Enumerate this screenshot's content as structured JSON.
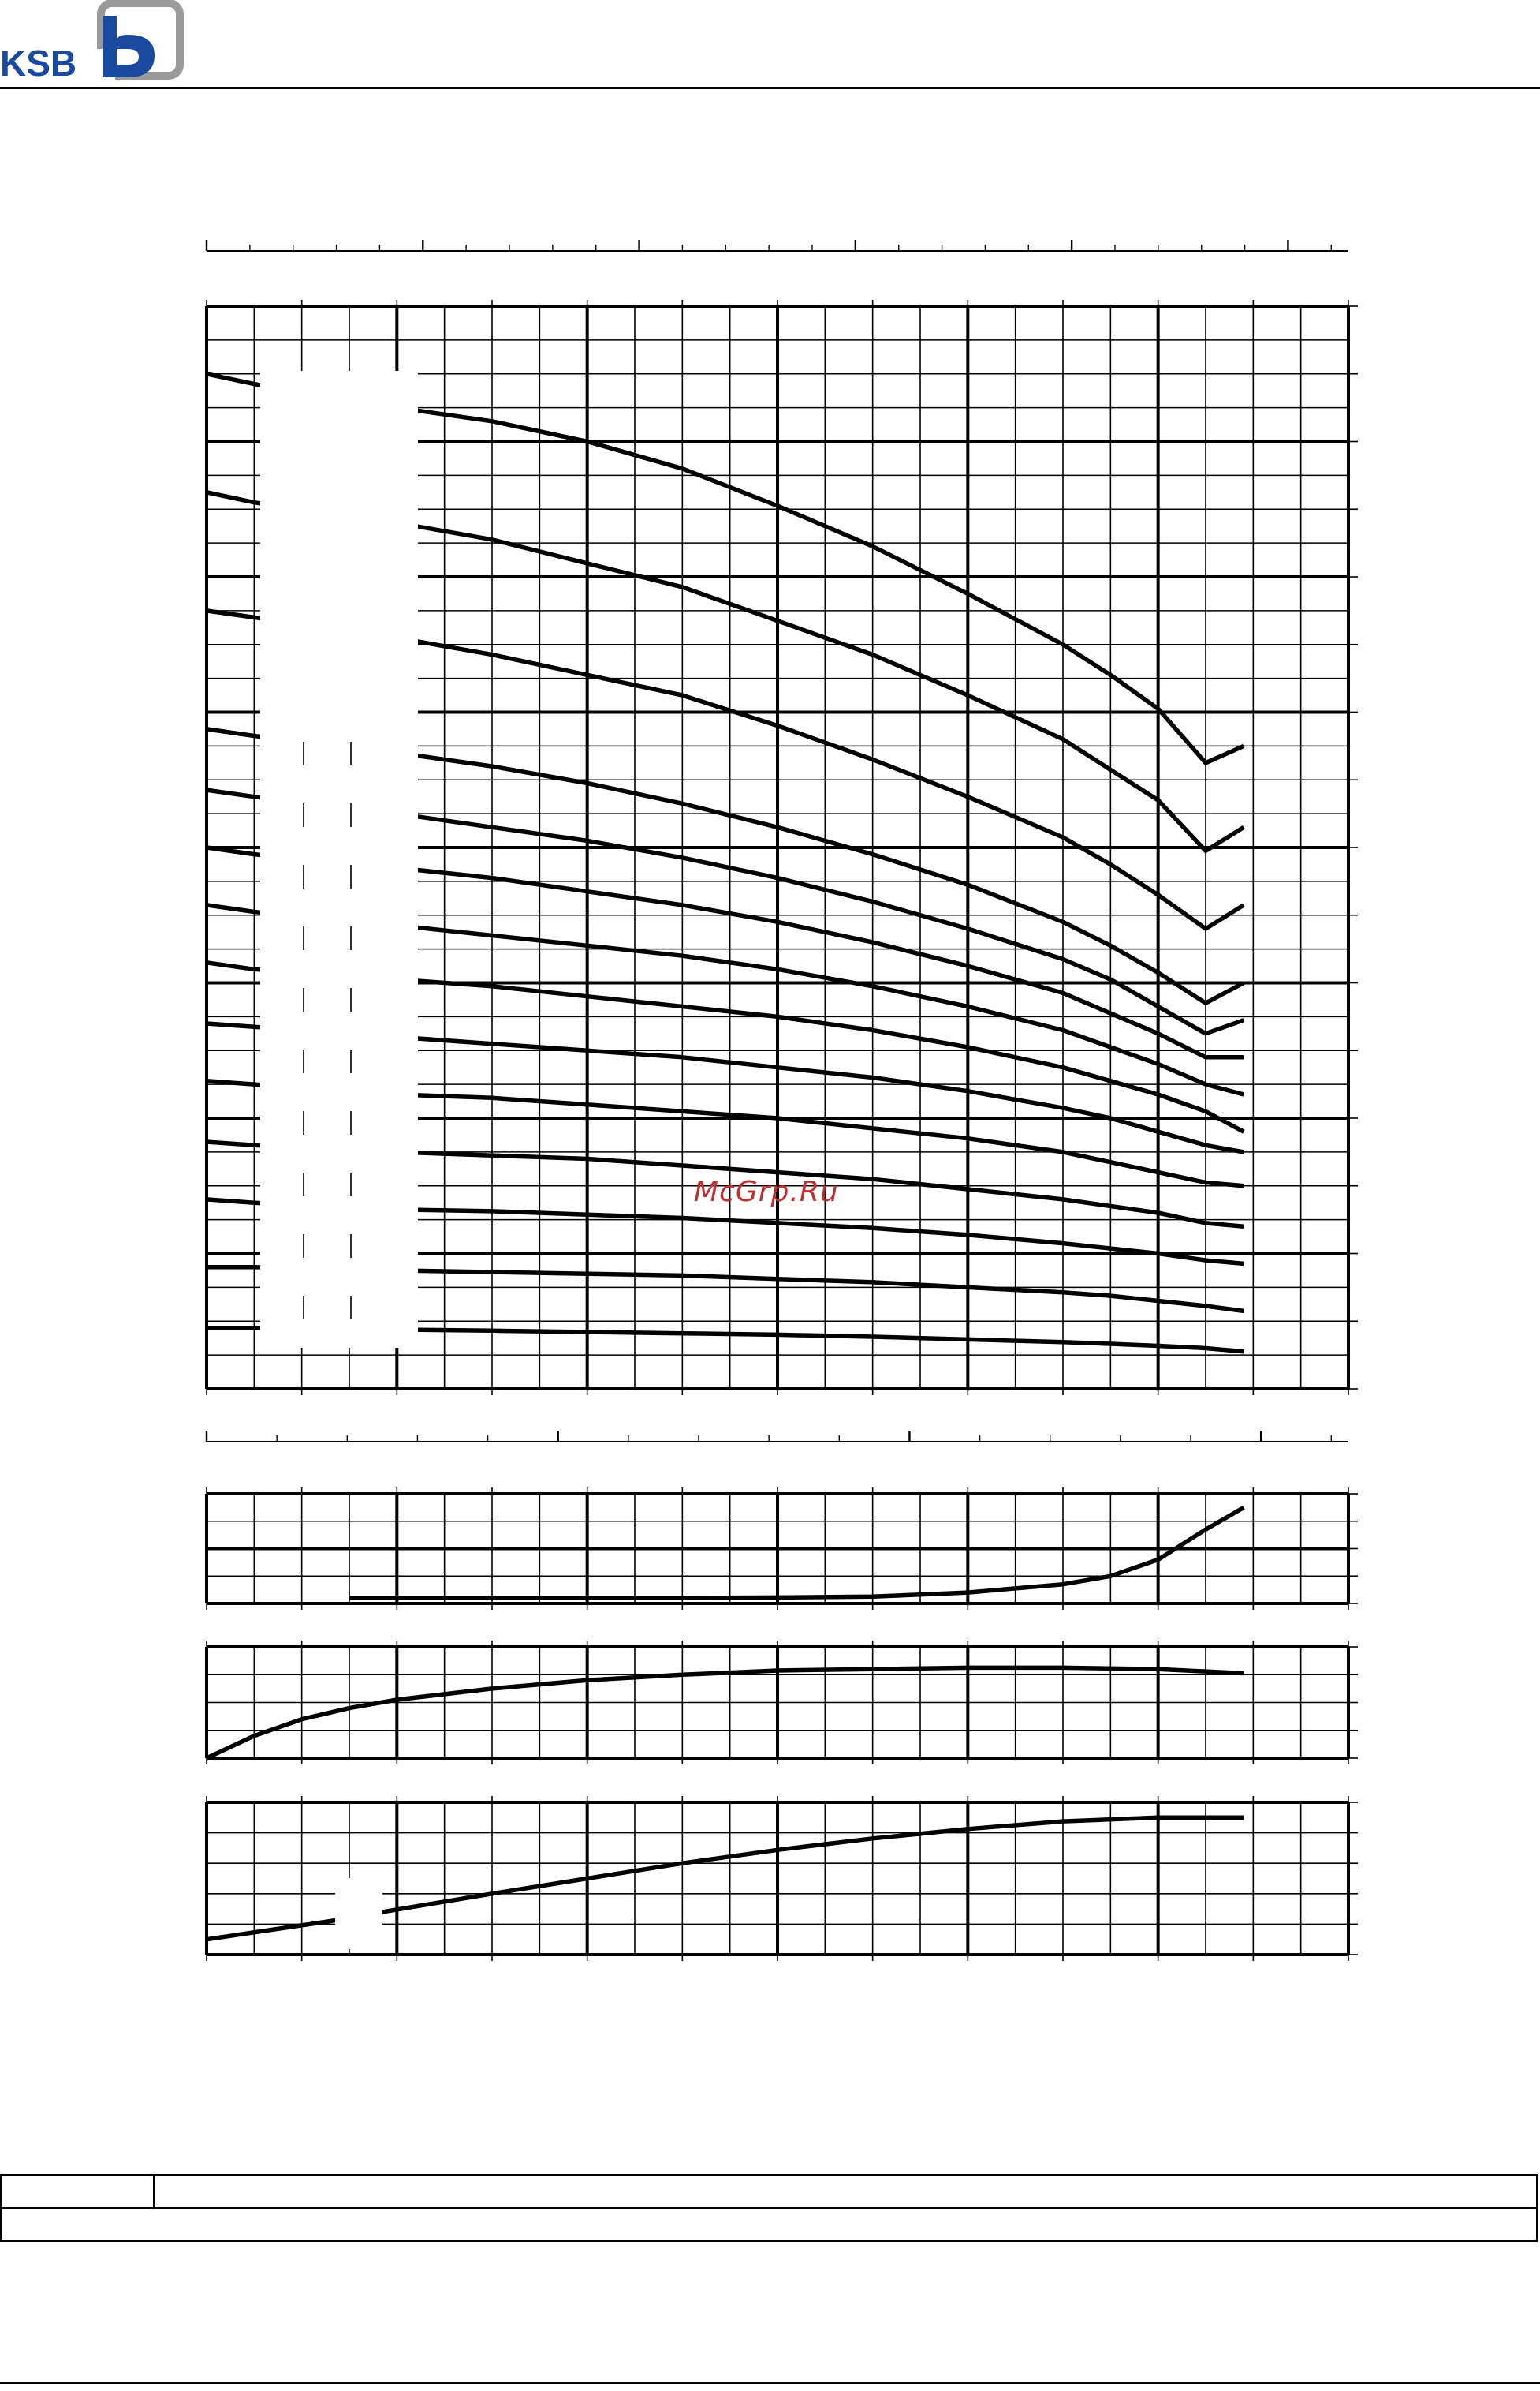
{
  "brand": {
    "name": "KSB",
    "accent_color": "#9a9a9a",
    "text_color": "#1a4aa0"
  },
  "watermark": "McGrp.Ru",
  "chart_data": [
    {
      "type": "line",
      "title": "",
      "xlabel": "",
      "ylabel": "",
      "xlim": [
        0,
        24
      ],
      "ylim": [
        0,
        32
      ],
      "grid": true,
      "series": [
        {
          "x": [
            0,
            1,
            4,
            6,
            8,
            10,
            12,
            14,
            16,
            18,
            19,
            20,
            21,
            21.8
          ],
          "y": [
            30,
            29.7,
            29,
            28.6,
            28,
            27.2,
            26.1,
            24.9,
            23.5,
            22,
            21.1,
            20.1,
            18.5,
            19.0
          ]
        },
        {
          "x": [
            0,
            1,
            4,
            6,
            8,
            10,
            12,
            14,
            16,
            18,
            19,
            20,
            21,
            21.8
          ],
          "y": [
            26.5,
            26.2,
            25.6,
            25.1,
            24.4,
            23.7,
            22.7,
            21.7,
            20.5,
            19.2,
            18.3,
            17.4,
            15.9,
            16.6
          ]
        },
        {
          "x": [
            0,
            1,
            4,
            6,
            8,
            10,
            12,
            14,
            16,
            18,
            19,
            20,
            21,
            21.8
          ],
          "y": [
            23,
            22.8,
            22.2,
            21.7,
            21.1,
            20.5,
            19.6,
            18.6,
            17.5,
            16.3,
            15.5,
            14.6,
            13.6,
            14.3
          ]
        },
        {
          "x": [
            0,
            1,
            4,
            6,
            8,
            10,
            12,
            14,
            16,
            18,
            19,
            20,
            21,
            21.8
          ],
          "y": [
            19.5,
            19.3,
            18.8,
            18.4,
            17.9,
            17.3,
            16.6,
            15.8,
            14.9,
            13.8,
            13.1,
            12.3,
            11.4,
            12.0
          ]
        },
        {
          "x": [
            0,
            1,
            4,
            6,
            8,
            10,
            12,
            14,
            16,
            18,
            19,
            20,
            21,
            21.8
          ],
          "y": [
            17.7,
            17.5,
            17,
            16.6,
            16.2,
            15.7,
            15.1,
            14.4,
            13.6,
            12.7,
            12.1,
            11.3,
            10.5,
            10.9
          ]
        },
        {
          "x": [
            0,
            1,
            4,
            6,
            8,
            10,
            12,
            14,
            16,
            18,
            19,
            20,
            21,
            21.8
          ],
          "y": [
            16,
            15.8,
            15.4,
            15.1,
            14.7,
            14.3,
            13.8,
            13.2,
            12.5,
            11.7,
            11.1,
            10.5,
            9.8,
            9.8
          ]
        },
        {
          "x": [
            0,
            1,
            4,
            6,
            8,
            10,
            12,
            14,
            16,
            18,
            19,
            20,
            21,
            21.8
          ],
          "y": [
            14.3,
            14.1,
            13.7,
            13.4,
            13.1,
            12.8,
            12.4,
            11.9,
            11.3,
            10.6,
            10.1,
            9.6,
            9,
            8.7
          ]
        },
        {
          "x": [
            0,
            1,
            4,
            6,
            8,
            10,
            12,
            14,
            16,
            18,
            19,
            20,
            21,
            21.8
          ],
          "y": [
            12.6,
            12.4,
            12.1,
            11.9,
            11.6,
            11.3,
            11,
            10.6,
            10.1,
            9.5,
            9.1,
            8.7,
            8.2,
            7.6
          ]
        },
        {
          "x": [
            0,
            1,
            4,
            6,
            8,
            10,
            12,
            14,
            16,
            18,
            19,
            20,
            21,
            21.8
          ],
          "y": [
            10.8,
            10.7,
            10.4,
            10.2,
            10,
            9.8,
            9.5,
            9.2,
            8.8,
            8.3,
            8,
            7.6,
            7.2,
            7.0
          ]
        },
        {
          "x": [
            0,
            1,
            4,
            6,
            8,
            10,
            12,
            14,
            16,
            18,
            19,
            20,
            21,
            21.8
          ],
          "y": [
            9.1,
            9,
            8.7,
            8.6,
            8.4,
            8.2,
            8,
            7.7,
            7.4,
            7,
            6.7,
            6.4,
            6.1,
            6.0
          ]
        },
        {
          "x": [
            0,
            1,
            4,
            6,
            8,
            10,
            12,
            14,
            16,
            18,
            19,
            20,
            21,
            21.8
          ],
          "y": [
            7.3,
            7.2,
            7,
            6.9,
            6.8,
            6.6,
            6.4,
            6.2,
            5.9,
            5.6,
            5.4,
            5.2,
            4.9,
            4.8
          ]
        },
        {
          "x": [
            0,
            1,
            4,
            6,
            8,
            10,
            12,
            14,
            16,
            18,
            19,
            20,
            21,
            21.8
          ],
          "y": [
            5.6,
            5.5,
            5.3,
            5.25,
            5.15,
            5.05,
            4.9,
            4.75,
            4.55,
            4.3,
            4.15,
            4,
            3.8,
            3.7
          ]
        },
        {
          "x": [
            0,
            1,
            4,
            6,
            8,
            10,
            12,
            14,
            16,
            18,
            19,
            20,
            21,
            21.8
          ],
          "y": [
            3.6,
            3.6,
            3.5,
            3.45,
            3.4,
            3.35,
            3.25,
            3.15,
            3.0,
            2.85,
            2.75,
            2.6,
            2.45,
            2.3
          ]
        },
        {
          "x": [
            0,
            1,
            4,
            6,
            8,
            10,
            12,
            14,
            16,
            18,
            19,
            20,
            21,
            21.8
          ],
          "y": [
            1.8,
            1.8,
            1.75,
            1.72,
            1.68,
            1.64,
            1.6,
            1.54,
            1.46,
            1.38,
            1.33,
            1.27,
            1.2,
            1.1
          ]
        }
      ]
    },
    {
      "type": "line",
      "title": "",
      "xlabel": "",
      "ylabel": "",
      "xlim": [
        0,
        24
      ],
      "ylim": [
        0,
        4
      ],
      "grid": true,
      "series": [
        {
          "x": [
            3,
            6,
            10,
            12,
            14,
            16,
            18,
            19,
            20,
            21,
            21.8
          ],
          "y": [
            0.2,
            0.2,
            0.2,
            0.22,
            0.25,
            0.4,
            0.7,
            1.0,
            1.6,
            2.7,
            3.5
          ]
        }
      ]
    },
    {
      "type": "line",
      "title": "",
      "xlabel": "",
      "ylabel": "",
      "xlim": [
        0,
        24
      ],
      "ylim": [
        0,
        4
      ],
      "grid": true,
      "series": [
        {
          "x": [
            0,
            1,
            2,
            3,
            4,
            6,
            8,
            10,
            12,
            14,
            16,
            18,
            20,
            21.8
          ],
          "y": [
            0,
            0.8,
            1.4,
            1.8,
            2.1,
            2.5,
            2.8,
            3.0,
            3.15,
            3.2,
            3.25,
            3.25,
            3.2,
            3.05
          ]
        }
      ]
    },
    {
      "type": "line",
      "title": "",
      "xlabel": "",
      "ylabel": "",
      "xlim": [
        0,
        24
      ],
      "ylim": [
        0,
        4
      ],
      "grid": true,
      "series": [
        {
          "x": [
            0,
            2.7,
            3.6,
            6,
            8,
            10,
            12,
            14,
            16,
            18,
            20,
            21.8
          ],
          "y": [
            0.4,
            0.9,
            1.1,
            1.6,
            2.0,
            2.4,
            2.75,
            3.05,
            3.3,
            3.5,
            3.6,
            3.6
          ]
        }
      ]
    }
  ]
}
